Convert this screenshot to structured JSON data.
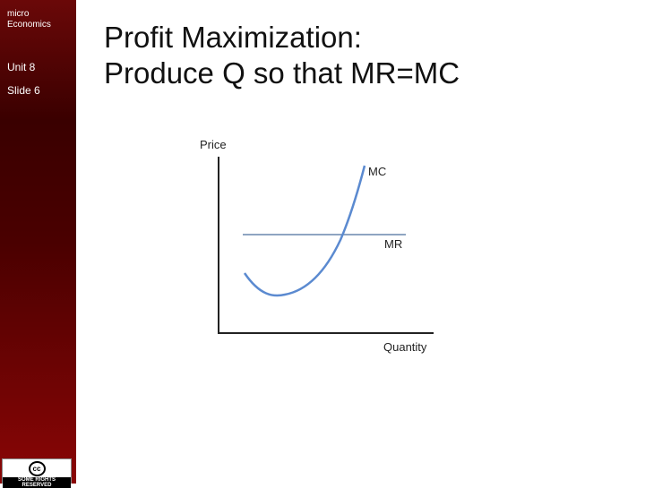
{
  "sidebar": {
    "course": [
      "micro",
      "Economics"
    ],
    "unit": "Unit 8",
    "slide": "Slide 6",
    "badge": {
      "icon": "cc",
      "text": "SOME RIGHTS RESERVED"
    }
  },
  "title": [
    "Profit Maximization:",
    "Produce Q so that MR=MC"
  ],
  "diagram": {
    "y_axis_label": "Price",
    "x_axis_label": "Quantity",
    "curves": [
      "MC",
      "MR"
    ]
  }
}
